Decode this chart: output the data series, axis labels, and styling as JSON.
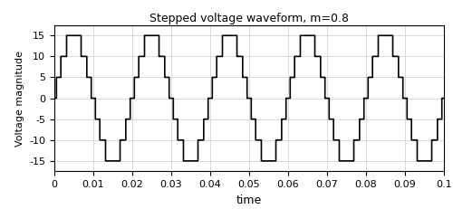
{
  "title": "Stepped voltage waveform, m=0.8",
  "xlabel": "time",
  "ylabel": "Voltage magnitude",
  "xlim": [
    0,
    0.1
  ],
  "ylim": [
    -17.5,
    17.5
  ],
  "yticks": [
    -15,
    -10,
    -5,
    0,
    5,
    10,
    15
  ],
  "xticks": [
    0,
    0.01,
    0.02,
    0.03,
    0.04,
    0.05,
    0.06,
    0.07,
    0.08,
    0.09,
    0.1
  ],
  "line_color": "#000000",
  "background_color": "#ffffff",
  "grid_color": "#d3d3d3",
  "period": 0.02,
  "num_cycles": 5,
  "line_width": 1.2
}
